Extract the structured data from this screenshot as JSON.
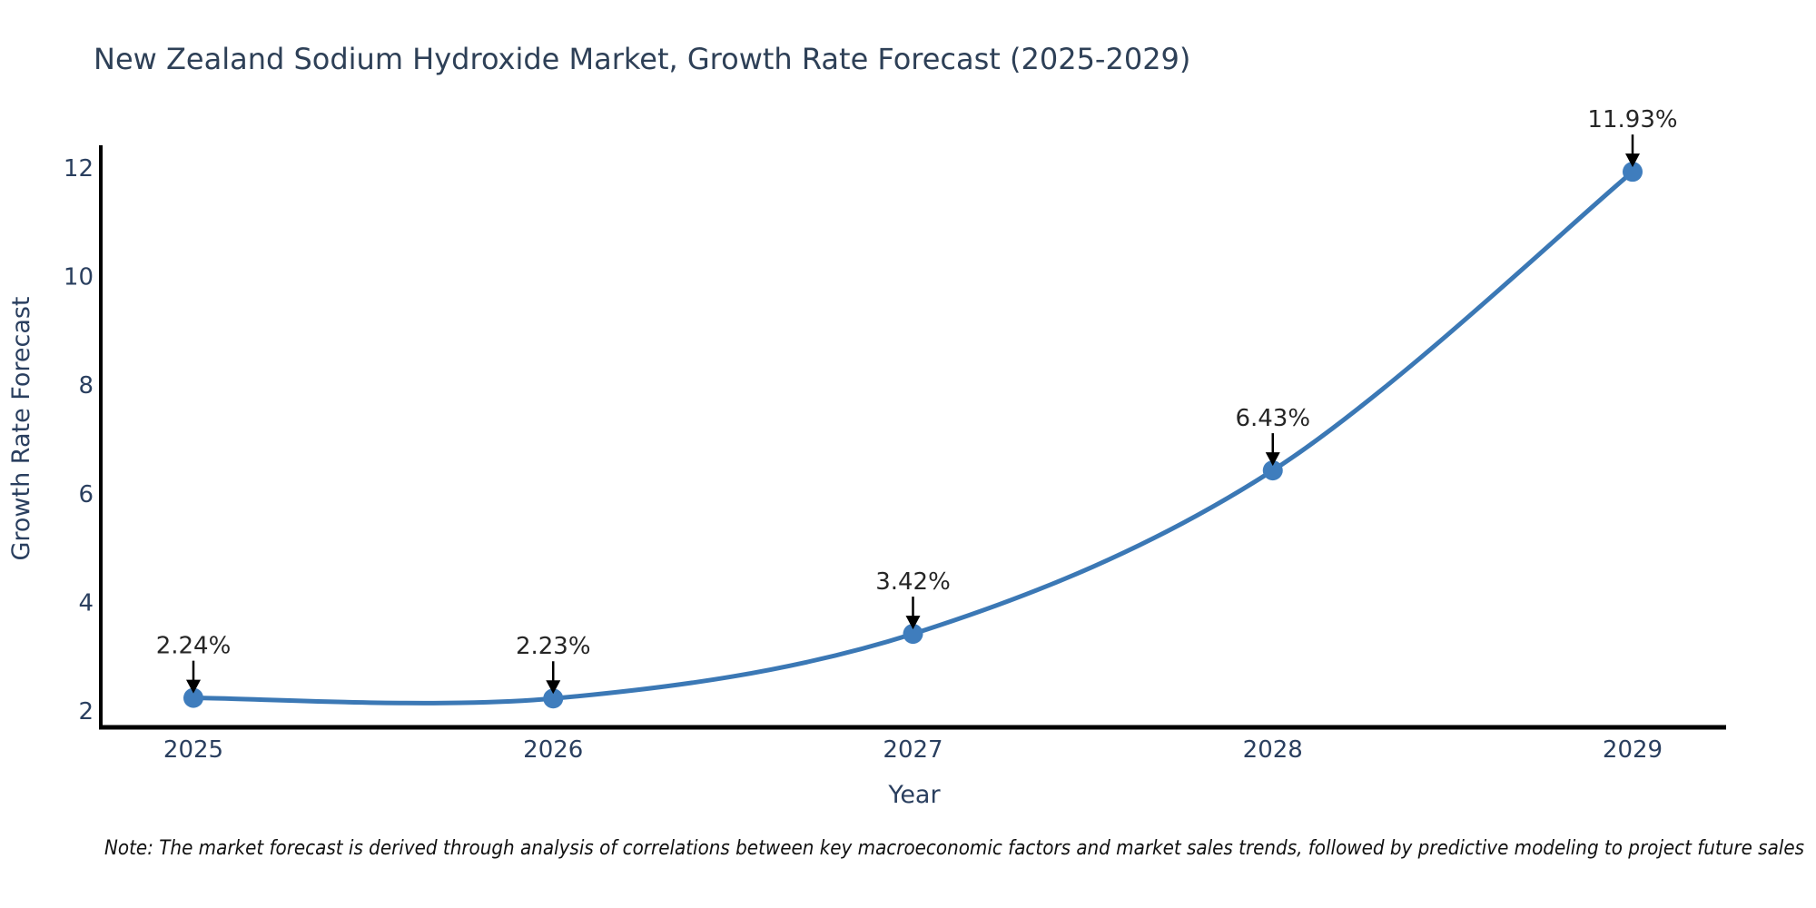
{
  "note": "Note: The market forecast is derived through analysis of correlations between key macroeconomic factors and market sales trends, followed by predictive modeling to project future sales",
  "chart_data": {
    "type": "line",
    "title": "New Zealand Sodium Hydroxide Market, Growth Rate Forecast (2025-2029)",
    "xlabel": "Year",
    "ylabel": "Growth Rate Forecast",
    "x": [
      "2025",
      "2026",
      "2027",
      "2028",
      "2029"
    ],
    "values": [
      2.24,
      2.23,
      3.42,
      6.43,
      11.93
    ],
    "point_labels": [
      "2.24%",
      "2.23%",
      "3.42%",
      "6.43%",
      "11.93%"
    ],
    "yticks": [
      2,
      4,
      6,
      8,
      10,
      12
    ],
    "ylim": [
      1.7,
      12.42
    ],
    "grid": false,
    "legend": false,
    "colors": {
      "line": "#3b78b5",
      "marker": "#3f7dbd",
      "axis_spine": "#000000",
      "axis_text": "#2a3f5f",
      "title_text": "#2e4057",
      "annotation_text": "#262626",
      "annotation_arrow": "#000000",
      "footnote_text": "#111111",
      "background": "#ffffff"
    }
  }
}
